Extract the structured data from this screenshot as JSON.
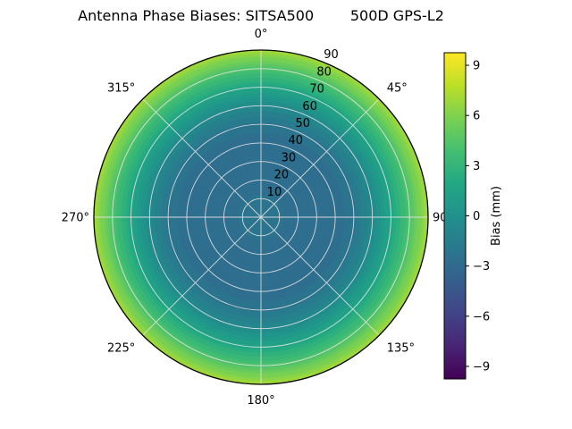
{
  "chart_data": {
    "type": "heatmap",
    "projection": "polar",
    "title": "Antenna Phase Biases: SITSA500        500D GPS-L2",
    "colorbar": {
      "label": "Bias (mm)",
      "ticks": [
        9,
        6,
        3,
        0,
        -3,
        -6,
        -9
      ],
      "range": [
        -9.75,
        9.75
      ]
    },
    "angle_ticks_deg": [
      0,
      45,
      90,
      135,
      180,
      225,
      270,
      315
    ],
    "angle_tick_labels": [
      "0°",
      "45°",
      "90",
      "135°",
      "180°",
      "225°",
      "270°",
      "315°"
    ],
    "radius_ticks_deg": [
      10,
      20,
      30,
      40,
      50,
      60,
      70,
      80,
      90
    ],
    "radius_label_angle_deg": 22.5,
    "radial_profile": {
      "zenith_deg": [
        0,
        10,
        20,
        30,
        40,
        50,
        60,
        70,
        80,
        90
      ],
      "bias_mm": [
        -2.2,
        -2.4,
        -2.8,
        -3.0,
        -2.9,
        -2.2,
        -0.6,
        1.6,
        4.2,
        7.0
      ]
    },
    "contour_step_mm": 0.5,
    "colormap": "viridis",
    "colormap_stops": [
      "#440154",
      "#482475",
      "#414487",
      "#355f8d",
      "#2a788e",
      "#21918c",
      "#22a884",
      "#44bf70",
      "#7ad151",
      "#bddf26",
      "#fde725"
    ],
    "grid_color": "#e6e6e6",
    "outline_color": "#000000"
  }
}
